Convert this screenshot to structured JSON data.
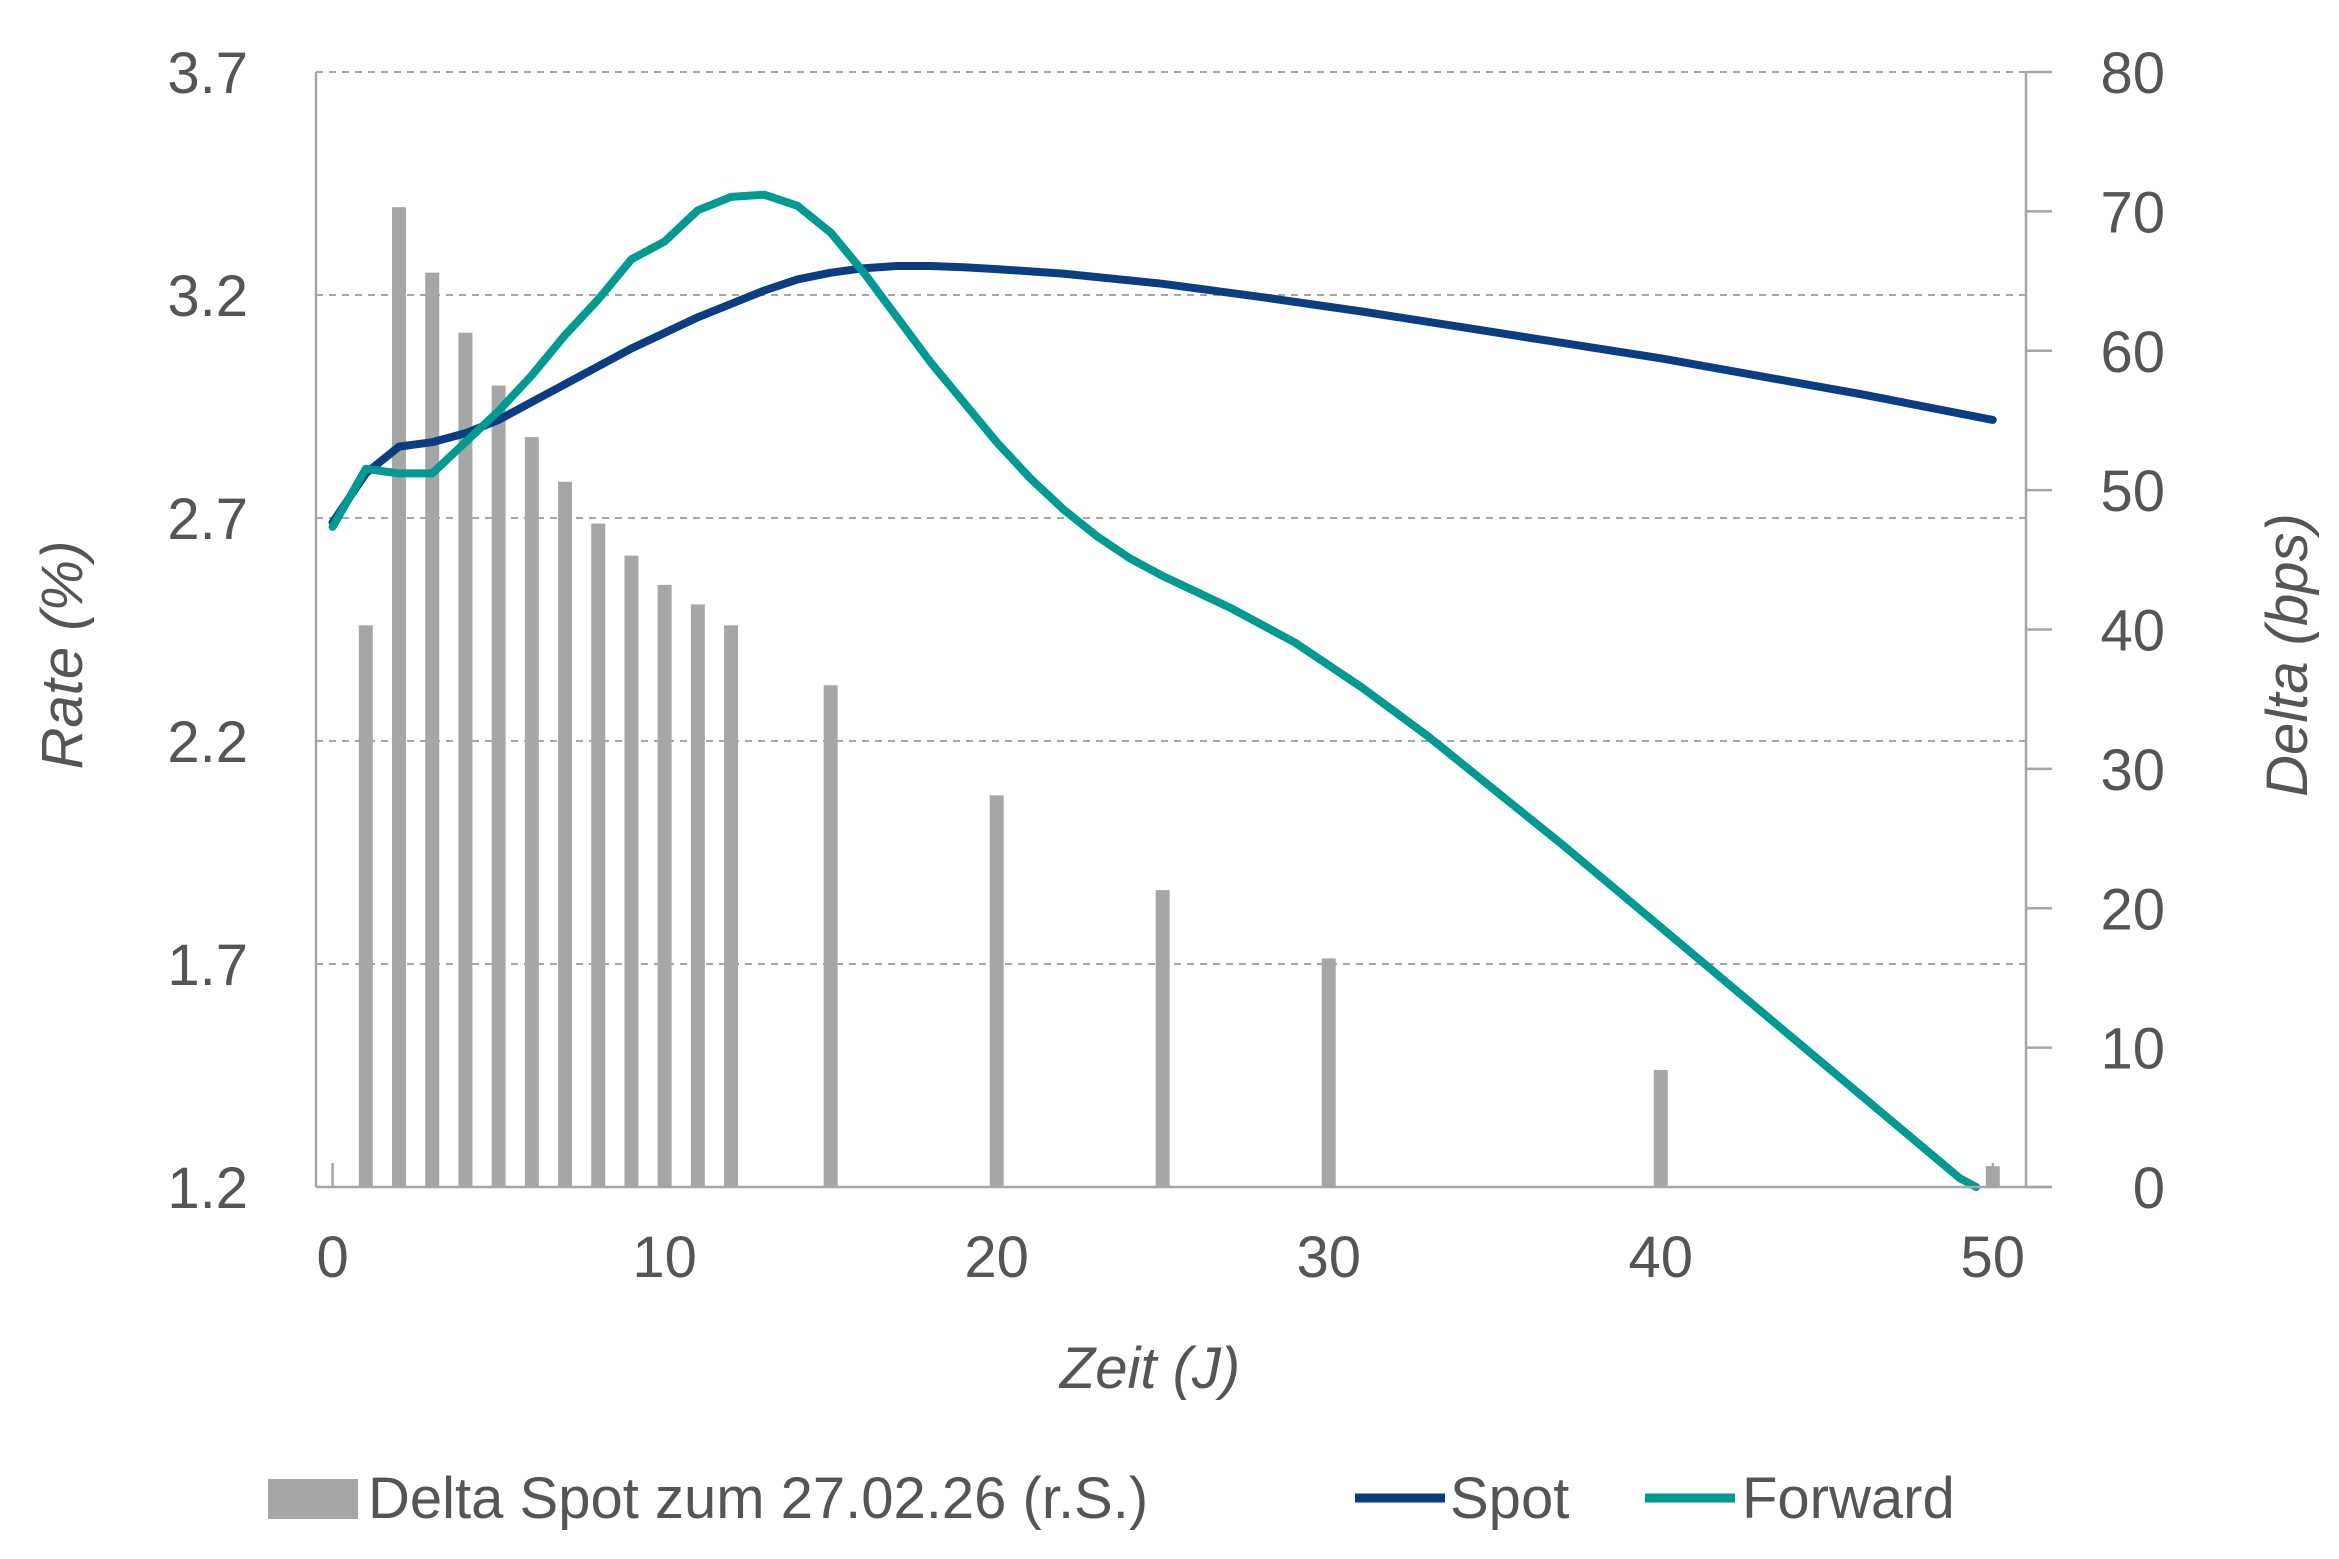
{
  "chart_data": {
    "type": "bar+line",
    "title": "",
    "xlabel": "Zeit (J)",
    "ylabel": "Rate (%)",
    "y2label": "Delta (bps)",
    "xlim": [
      -0.5,
      51
    ],
    "ylim": [
      1.2,
      3.7
    ],
    "y2lim": [
      0,
      80
    ],
    "xticks": [
      "0",
      "10",
      "20",
      "30",
      "40",
      "50"
    ],
    "yticks": [
      "1.2",
      "1.7",
      "2.2",
      "2.7",
      "3.2",
      "3.7"
    ],
    "y2ticks": [
      "0",
      "10",
      "20",
      "30",
      "40",
      "50",
      "60",
      "70",
      "80"
    ],
    "grid": "horizontal dashed",
    "legend_position": "bottom",
    "bars": {
      "name": "Delta Spot zum 27.02.26 (r.S.)",
      "axis": "right",
      "x": [
        1,
        2,
        3,
        4,
        5,
        6,
        7,
        8,
        9,
        10,
        11,
        12,
        15,
        20,
        25,
        30,
        40,
        50
      ],
      "values": [
        40.3,
        70.3,
        65.6,
        61.3,
        57.5,
        53.8,
        50.6,
        47.6,
        45.3,
        43.2,
        41.8,
        40.3,
        36.0,
        28.1,
        21.3,
        16.4,
        8.4,
        1.5
      ]
    },
    "series": [
      {
        "name": "Spot",
        "axis": "left",
        "x": [
          0,
          1,
          2,
          3,
          4,
          5,
          6,
          7,
          8,
          9,
          10,
          11,
          12,
          13,
          14,
          15,
          16,
          17,
          18,
          19,
          20,
          22,
          25,
          28,
          31,
          34,
          37,
          40,
          43,
          46,
          50
        ],
        "values": [
          2.69,
          2.8,
          2.86,
          2.87,
          2.89,
          2.92,
          2.96,
          3.0,
          3.04,
          3.08,
          3.115,
          3.15,
          3.18,
          3.21,
          3.235,
          3.25,
          3.26,
          3.265,
          3.265,
          3.262,
          3.258,
          3.248,
          3.225,
          3.195,
          3.163,
          3.128,
          3.093,
          3.058,
          3.018,
          2.978,
          2.92
        ]
      },
      {
        "name": "Forward",
        "axis": "left",
        "x": [
          0,
          1,
          2,
          3,
          4,
          5,
          6,
          7,
          8,
          9,
          10,
          11,
          12,
          13,
          14,
          15,
          16,
          17,
          18,
          19,
          20,
          21,
          22,
          23,
          24,
          25,
          27,
          29,
          31,
          33,
          35,
          37,
          39,
          41,
          43,
          45,
          47,
          49,
          49.5
        ],
        "values": [
          2.68,
          2.81,
          2.8,
          2.8,
          2.87,
          2.94,
          3.02,
          3.11,
          3.19,
          3.28,
          3.32,
          3.39,
          3.42,
          3.425,
          3.4,
          3.34,
          3.25,
          3.15,
          3.05,
          2.96,
          2.87,
          2.79,
          2.72,
          2.66,
          2.61,
          2.57,
          2.5,
          2.42,
          2.32,
          2.21,
          2.09,
          1.97,
          1.845,
          1.72,
          1.595,
          1.47,
          1.345,
          1.22,
          1.2
        ]
      }
    ],
    "colors": {
      "bars": "#a6a6a6",
      "spot": "#0b3d82",
      "forward": "#009a93",
      "grid": "#a6a6a6",
      "axis": "#a6a6a6",
      "text": "#555555"
    }
  }
}
